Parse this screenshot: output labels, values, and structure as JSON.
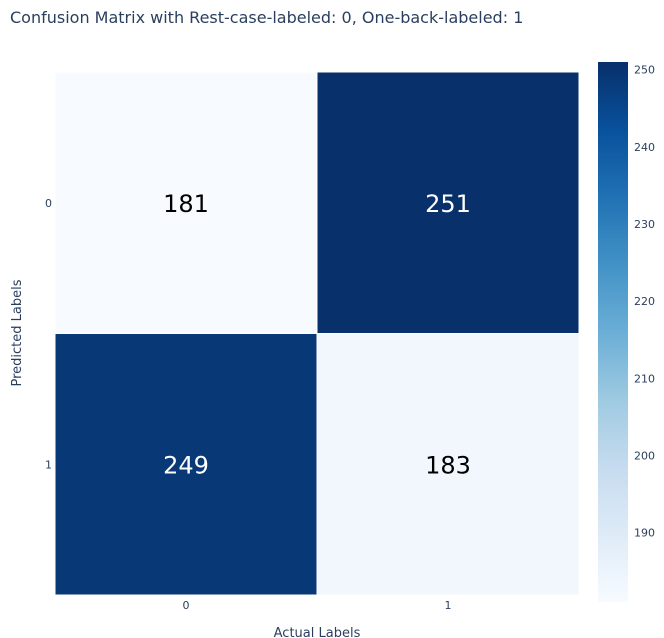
{
  "chart_data": {
    "type": "heatmap",
    "title": "Confusion Matrix with Rest-case-labeled: 0, One-back-labeled: 1",
    "xlabel": "Actual Labels",
    "ylabel": "Predicted Labels",
    "x_categories": [
      "0",
      "1"
    ],
    "y_categories": [
      "0",
      "1"
    ],
    "z": [
      [
        181,
        251
      ],
      [
        249,
        183
      ]
    ],
    "colorscale": "Blues",
    "colorscale_stops": [
      [
        0.0,
        "#f7fbff"
      ],
      [
        0.125,
        "#deebf7"
      ],
      [
        0.25,
        "#c6dbef"
      ],
      [
        0.375,
        "#9ecae1"
      ],
      [
        0.5,
        "#6baed6"
      ],
      [
        0.625,
        "#4292c6"
      ],
      [
        0.75,
        "#2171b5"
      ],
      [
        0.875,
        "#08519c"
      ],
      [
        1.0,
        "#08306b"
      ]
    ],
    "zmin": 181,
    "zmax": 251,
    "colorbar_ticks": [
      190,
      200,
      210,
      220,
      230,
      240,
      250
    ]
  }
}
